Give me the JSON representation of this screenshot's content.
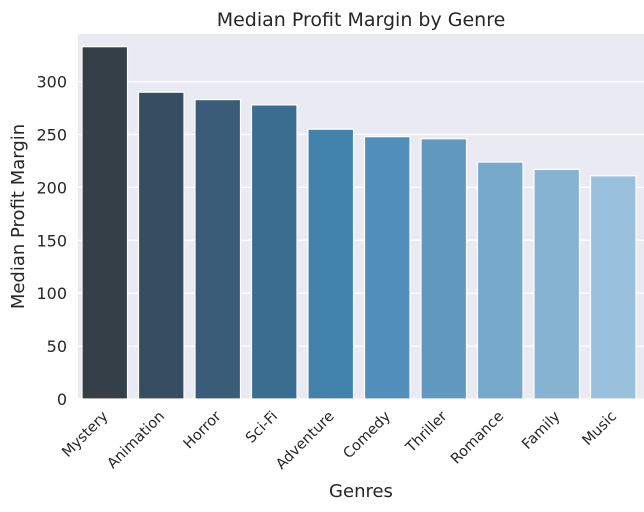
{
  "chart_data": {
    "type": "bar",
    "title": "Median Profit Margin by Genre",
    "xlabel": "Genres",
    "ylabel": "Median Profit Margin",
    "categories": [
      "Mystery",
      "Animation",
      "Horror",
      "Sci-Fi",
      "Adventure",
      "Comedy",
      "Thriller",
      "Romance",
      "Family",
      "Music"
    ],
    "values": [
      333,
      290,
      283,
      278,
      255,
      248,
      246,
      224,
      217,
      211
    ],
    "ylim": [
      0,
      345
    ],
    "yticks": [
      0,
      50,
      100,
      150,
      200,
      250,
      300
    ],
    "grid": true,
    "colors": [
      "#343f47",
      "#374e62",
      "#395c78",
      "#3b6d90",
      "#4182aa",
      "#528fbc",
      "#6199c1",
      "#77a9cb",
      "#87b3d3",
      "#99c1dd"
    ],
    "background": "#eaeaf2"
  }
}
